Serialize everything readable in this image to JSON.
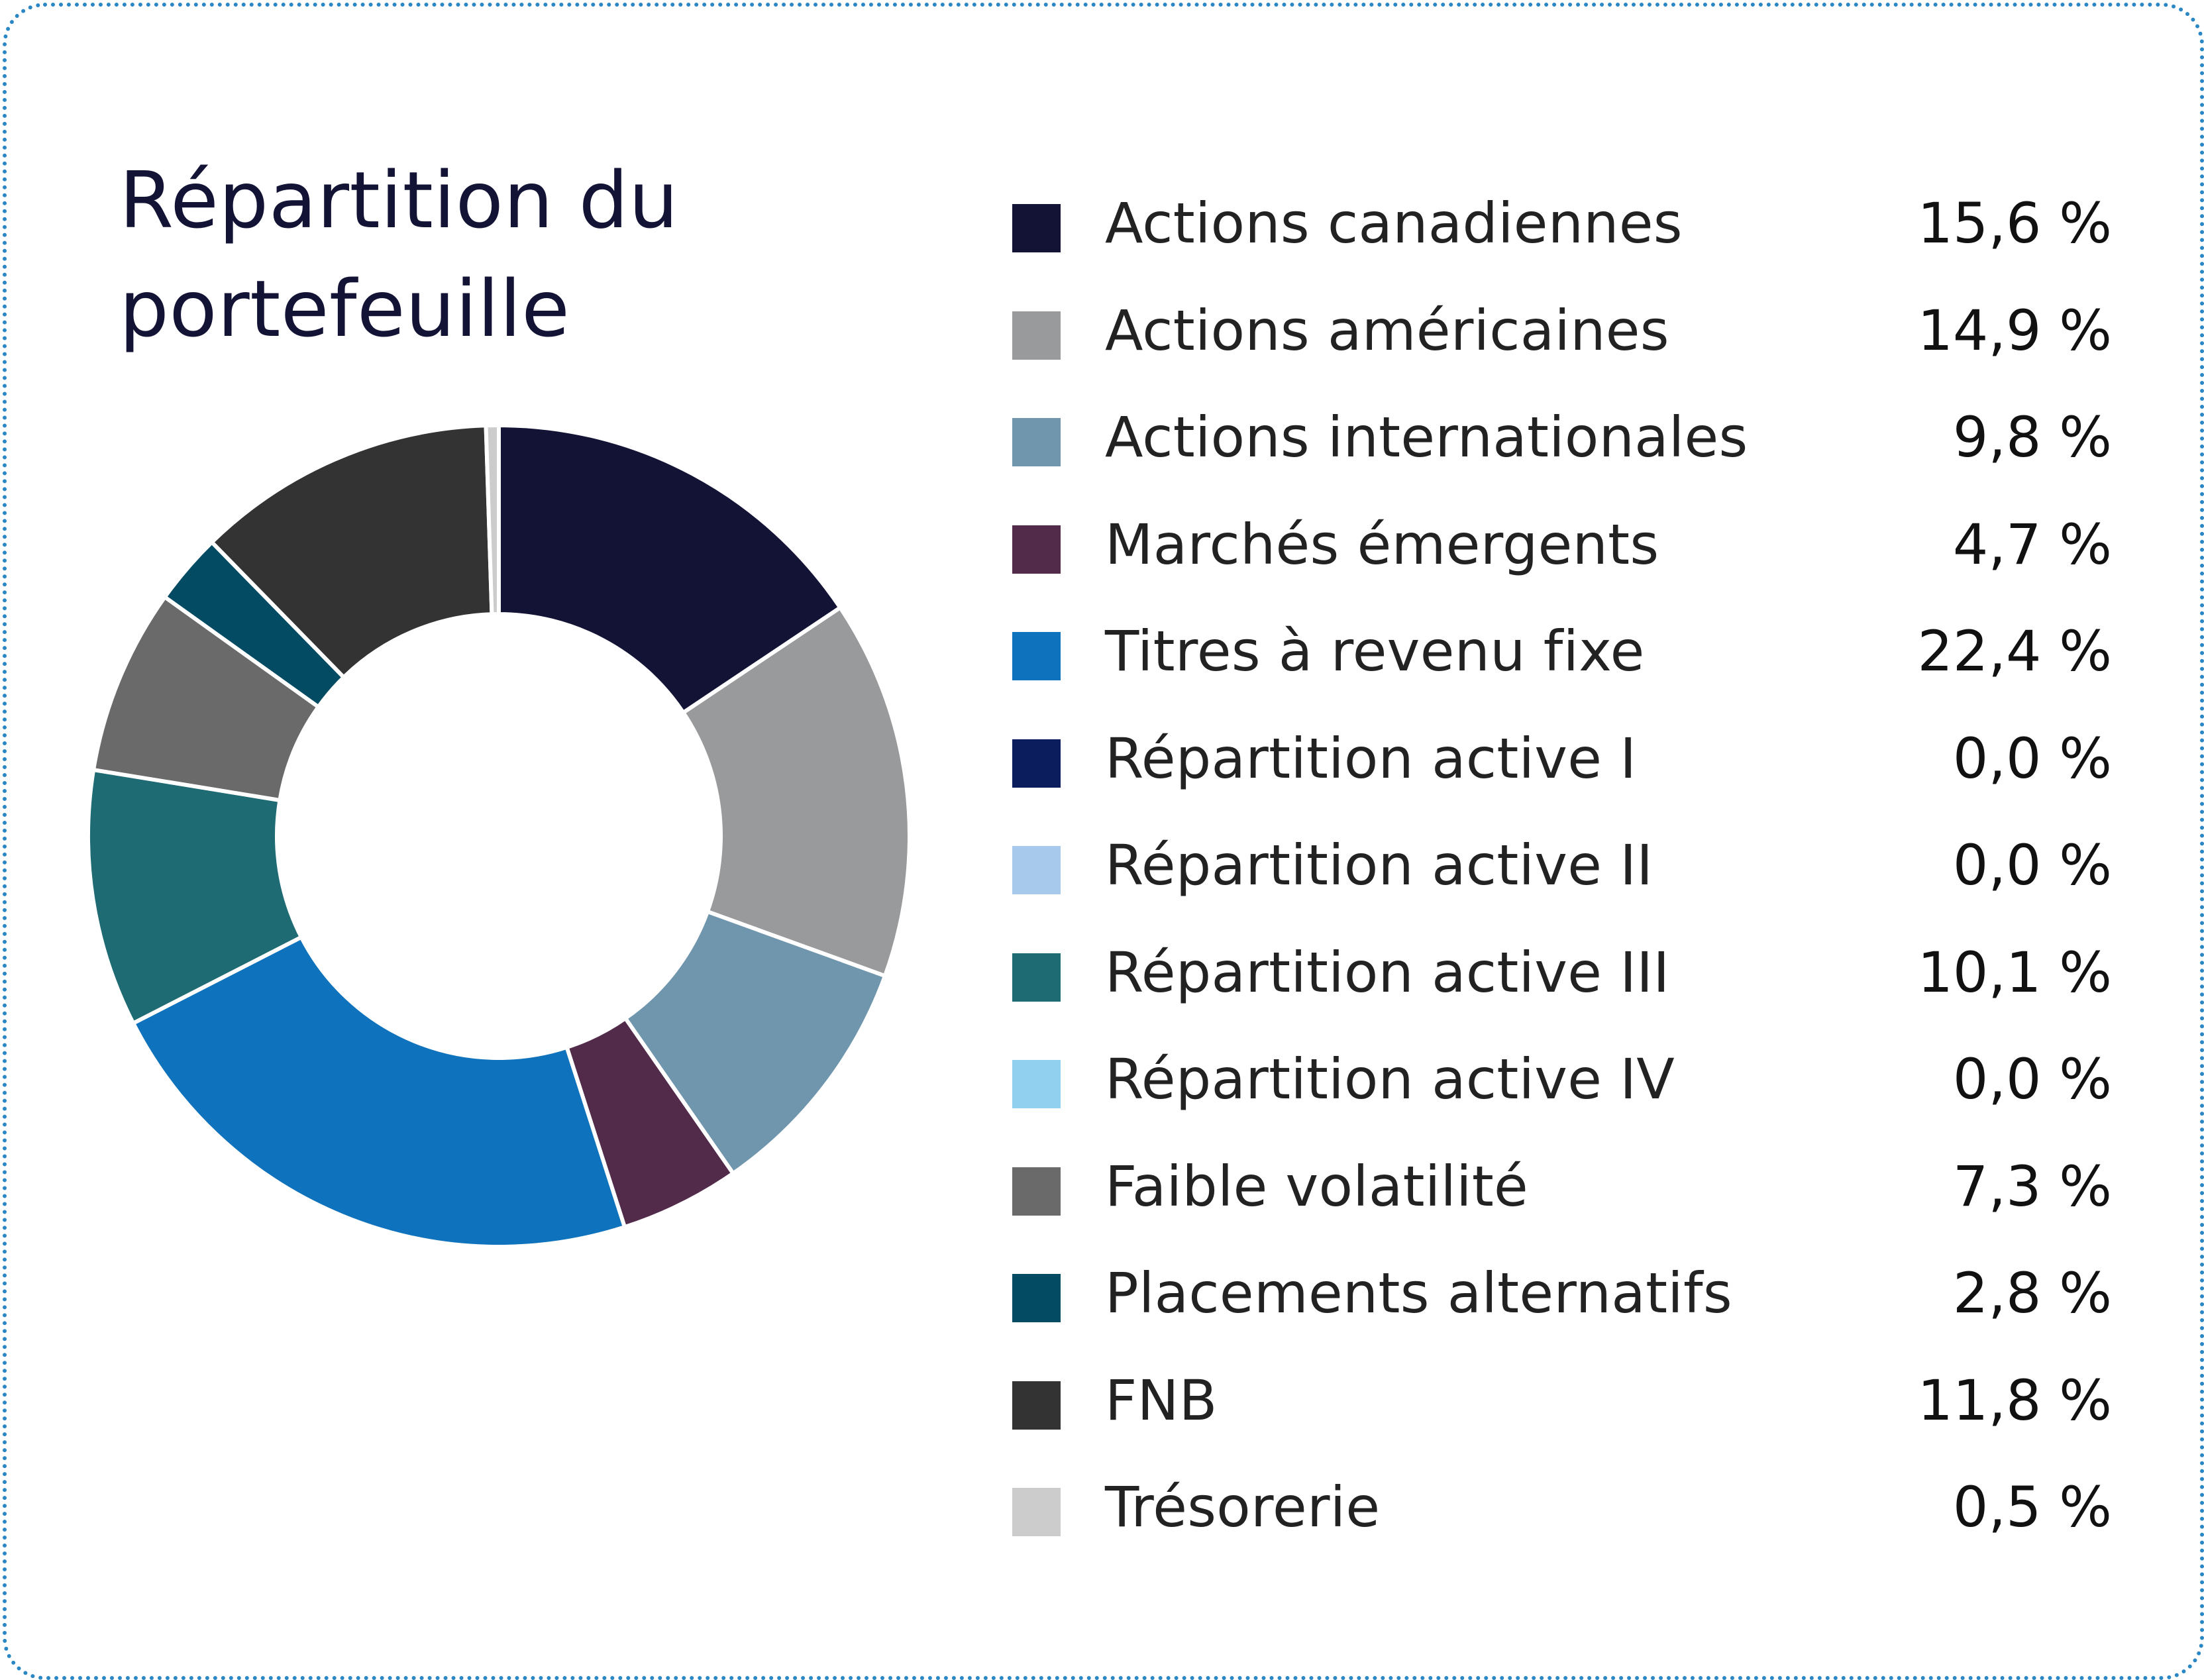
{
  "chart_data": {
    "type": "pie",
    "title": "Répartition du portefeuille",
    "title_lines": [
      "Répartition du",
      "portefeuille"
    ],
    "donut": true,
    "start": "top",
    "direction": "clockwise",
    "legend_position": "right",
    "slices": [
      {
        "label": "Actions canadiennes",
        "value": 15.6,
        "display": "15,6 %",
        "color": "#131336"
      },
      {
        "label": "Actions américaines",
        "value": 14.9,
        "display": "14,9 %",
        "color": "#999a9c"
      },
      {
        "label": "Actions internationales",
        "value": 9.8,
        "display": "9,8 %",
        "color": "#7096ad"
      },
      {
        "label": "Marchés émergents",
        "value": 4.7,
        "display": "4,7 %",
        "color": "#532b4a"
      },
      {
        "label": "Titres à revenu fixe",
        "value": 22.4,
        "display": "22,4 %",
        "color": "#0f72bc"
      },
      {
        "label": "Répartition active I",
        "value": 0.0,
        "display": "0,0 %",
        "color": "#0c1d5d"
      },
      {
        "label": "Répartition active II",
        "value": 0.0,
        "display": "0,0 %",
        "color": "#a6c9ec"
      },
      {
        "label": "Répartition active III",
        "value": 10.1,
        "display": "10,1 %",
        "color": "#1f6b74"
      },
      {
        "label": "Répartition active IV",
        "value": 0.0,
        "display": "0,0 %",
        "color": "#92d0ef"
      },
      {
        "label": "Faible volatilité",
        "value": 7.3,
        "display": "7,3 %",
        "color": "#6a6a6a"
      },
      {
        "label": "Placements alternatifs",
        "value": 2.8,
        "display": "2,8 %",
        "color": "#034b63"
      },
      {
        "label": "FNB",
        "value": 11.8,
        "display": "11,8 %",
        "color": "#333333"
      },
      {
        "label": "Trésorerie",
        "value": 0.5,
        "display": "0,5 %",
        "color": "#cccccc"
      }
    ]
  }
}
